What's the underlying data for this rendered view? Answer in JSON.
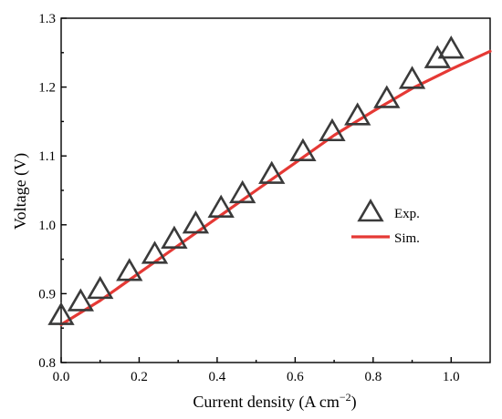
{
  "chart_data": {
    "type": "scatter",
    "xlabel": "Current density (A cm",
    "xlabel_sup": "−2",
    "xlabel_close": ")",
    "ylabel": "Voltage (V)",
    "xlim": [
      0.0,
      1.1
    ],
    "ylim": [
      0.8,
      1.3
    ],
    "xticks": [
      "0.0",
      "0.2",
      "0.4",
      "0.6",
      "0.8",
      "1.0"
    ],
    "yticks": [
      "0.8",
      "0.9",
      "1.0",
      "1.1",
      "1.2",
      "1.3"
    ],
    "grid": false,
    "legend_position": "right-middle",
    "series": [
      {
        "name": "Exp.",
        "marker": "open-triangle",
        "color": "#3a3a3a",
        "x": [
          0.0,
          0.05,
          0.1,
          0.175,
          0.24,
          0.29,
          0.345,
          0.41,
          0.465,
          0.54,
          0.62,
          0.695,
          0.76,
          0.835,
          0.9,
          0.965,
          1.0
        ],
        "y": [
          0.868,
          0.888,
          0.906,
          0.932,
          0.957,
          0.979,
          1.001,
          1.024,
          1.045,
          1.073,
          1.106,
          1.135,
          1.158,
          1.183,
          1.211,
          1.241,
          1.255
        ]
      },
      {
        "name": "Sim.",
        "marker": "line",
        "color": "#e53935",
        "x": [
          0.0,
          0.1,
          0.2,
          0.3,
          0.4,
          0.5,
          0.6,
          0.7,
          0.8,
          0.9,
          1.0,
          1.1
        ],
        "y": [
          0.855,
          0.89,
          0.93,
          0.97,
          1.01,
          1.05,
          1.09,
          1.13,
          1.165,
          1.198,
          1.226,
          1.252
        ]
      }
    ]
  }
}
